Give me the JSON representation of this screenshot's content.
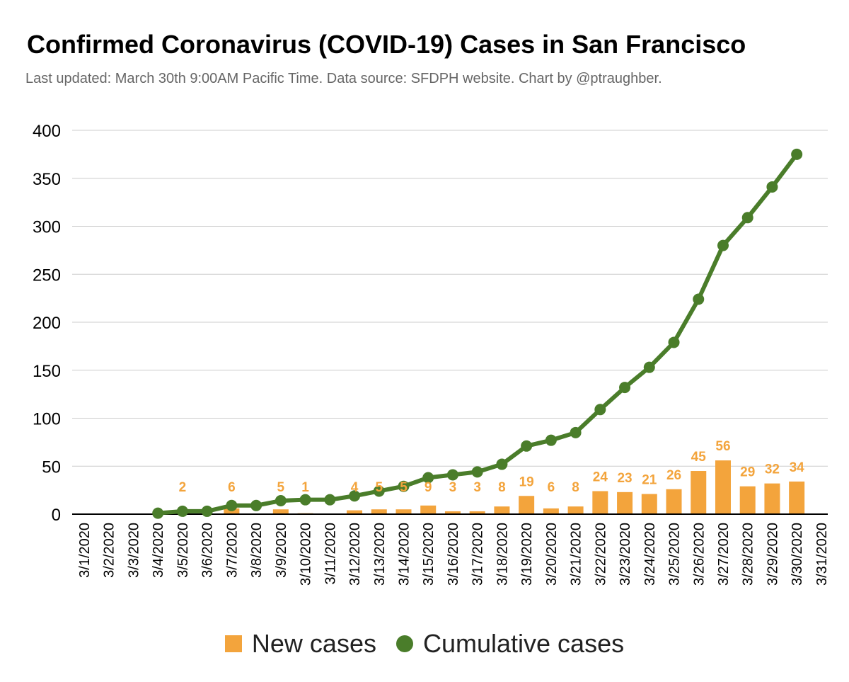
{
  "title": "Confirmed Coronavirus (COVID-19) Cases in San Francisco",
  "subtitle": "Last updated: March 30th 9:00AM Pacific Time. Data source: SFDPH website. Chart by @ptraughber.",
  "colors": {
    "new_cases": "#f3a43c",
    "cumulative": "#4a7d2a",
    "grid": "#cccccc",
    "axis": "#000000"
  },
  "legend": {
    "new_cases": "New cases",
    "cumulative": "Cumulative cases"
  },
  "chart_data": {
    "type": "bar+line",
    "categories": [
      "3/1/2020",
      "3/2/2020",
      "3/3/2020",
      "3/4/2020",
      "3/5/2020",
      "3/6/2020",
      "3/7/2020",
      "3/8/2020",
      "3/9/2020",
      "3/10/2020",
      "3/11/2020",
      "3/12/2020",
      "3/13/2020",
      "3/14/2020",
      "3/15/2020",
      "3/16/2020",
      "3/17/2020",
      "3/18/2020",
      "3/19/2020",
      "3/20/2020",
      "3/21/2020",
      "3/22/2020",
      "3/23/2020",
      "3/24/2020",
      "3/25/2020",
      "3/26/2020",
      "3/27/2020",
      "3/28/2020",
      "3/29/2020",
      "3/30/2020",
      "3/31/2020"
    ],
    "series": [
      {
        "name": "New cases",
        "type": "bar",
        "values": [
          null,
          null,
          null,
          null,
          2,
          null,
          6,
          null,
          5,
          1,
          null,
          4,
          5,
          5,
          9,
          3,
          3,
          8,
          19,
          6,
          8,
          24,
          23,
          21,
          26,
          45,
          56,
          29,
          32,
          34,
          null
        ],
        "data_labels": [
          "",
          "",
          "",
          "",
          "2",
          "",
          "6",
          "",
          "5",
          "1",
          "",
          "4",
          "5",
          "5",
          "9",
          "3",
          "3",
          "8",
          "19",
          "6",
          "8",
          "24",
          "23",
          "21",
          "26",
          "45",
          "56",
          "29",
          "32",
          "34",
          ""
        ]
      },
      {
        "name": "Cumulative cases",
        "type": "line",
        "values": [
          null,
          null,
          null,
          1,
          3,
          3,
          9,
          9,
          14,
          15,
          15,
          19,
          24,
          29,
          38,
          41,
          44,
          52,
          71,
          77,
          85,
          109,
          132,
          153,
          179,
          224,
          280,
          309,
          341,
          375,
          null
        ]
      }
    ],
    "yticks": [
      "0",
      "50",
      "100",
      "150",
      "200",
      "250",
      "300",
      "350",
      "400"
    ],
    "ylim": [
      0,
      400
    ],
    "grid": true,
    "legend_position": "bottom"
  }
}
